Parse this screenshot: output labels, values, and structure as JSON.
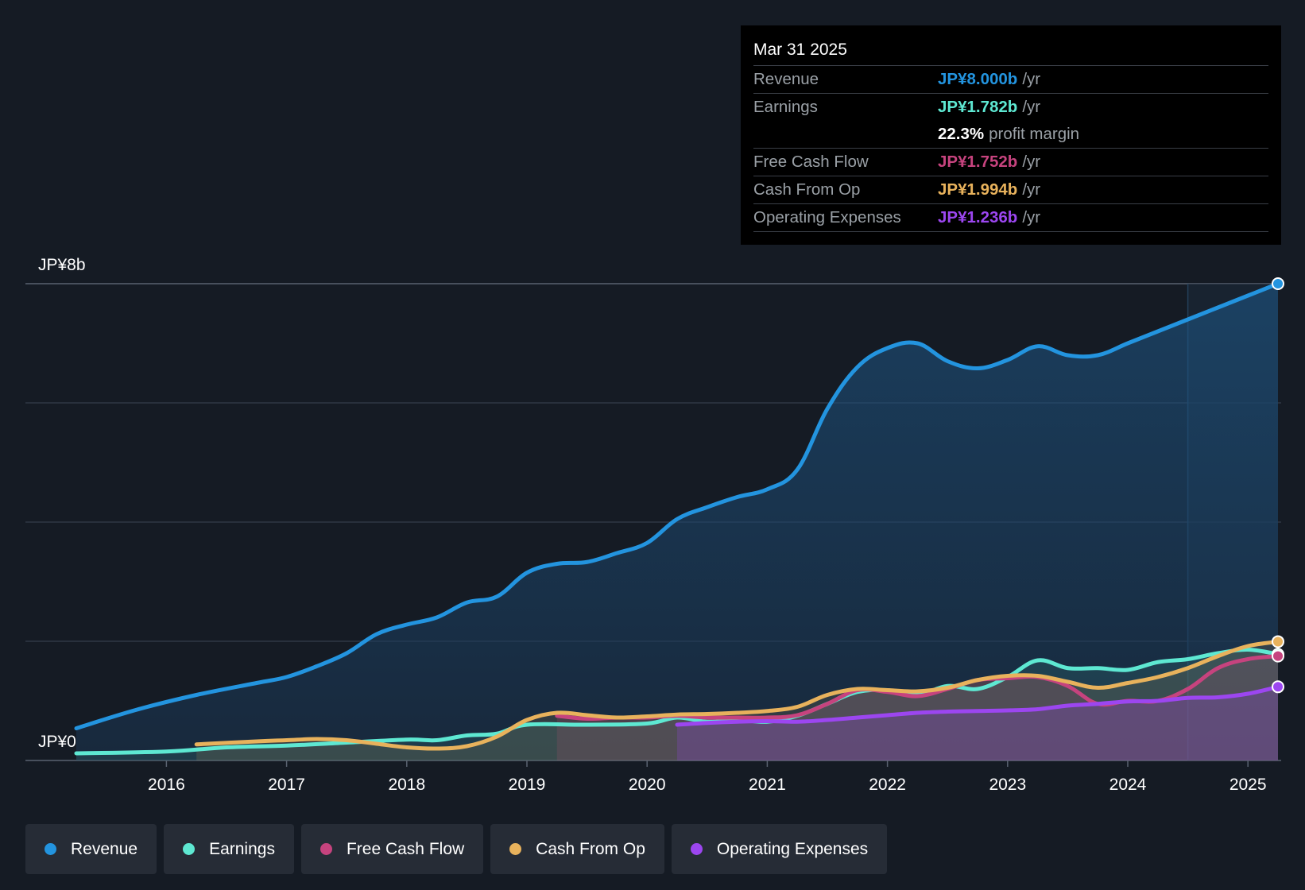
{
  "chart_data": {
    "type": "area",
    "y_axis": {
      "top_label": "JP¥8b",
      "bottom_label": "JP¥0",
      "ylim": [
        0,
        8
      ]
    },
    "x_axis": {
      "ticks": [
        "2016",
        "2017",
        "2018",
        "2019",
        "2020",
        "2021",
        "2022",
        "2023",
        "2024",
        "2025"
      ],
      "xlim": [
        2015.25,
        2025.25
      ]
    },
    "series": [
      {
        "name": "Revenue",
        "color": "#2394df",
        "x": [
          2015.25,
          2015.75,
          2016.25,
          2016.75,
          2017.0,
          2017.25,
          2017.5,
          2017.75,
          2018.0,
          2018.25,
          2018.5,
          2018.75,
          2019.0,
          2019.25,
          2019.5,
          2019.75,
          2020.0,
          2020.25,
          2020.5,
          2020.75,
          2021.0,
          2021.25,
          2021.5,
          2021.75,
          2022.0,
          2022.25,
          2022.5,
          2022.75,
          2023.0,
          2023.25,
          2023.5,
          2023.75,
          2024.0,
          2024.25,
          2024.5,
          2024.75,
          2025.0,
          2025.25
        ],
        "values": [
          0.54,
          0.85,
          1.1,
          1.3,
          1.4,
          1.58,
          1.8,
          2.12,
          2.28,
          2.4,
          2.65,
          2.75,
          3.15,
          3.3,
          3.33,
          3.48,
          3.65,
          4.05,
          4.25,
          4.42,
          4.55,
          4.88,
          5.9,
          6.6,
          6.92,
          7.0,
          6.7,
          6.58,
          6.72,
          6.95,
          6.8,
          6.8,
          7.0,
          7.2,
          7.4,
          7.6,
          7.8,
          8.0
        ]
      },
      {
        "name": "Earnings",
        "color": "#5ee8d2",
        "x": [
          2015.25,
          2016.0,
          2016.5,
          2017.0,
          2017.5,
          2018.0,
          2018.25,
          2018.5,
          2018.75,
          2019.0,
          2019.5,
          2020.0,
          2020.25,
          2020.5,
          2020.75,
          2021.0,
          2021.25,
          2021.5,
          2021.75,
          2022.0,
          2022.25,
          2022.5,
          2022.75,
          2023.0,
          2023.25,
          2023.5,
          2023.75,
          2024.0,
          2024.25,
          2024.5,
          2024.75,
          2025.0,
          2025.25
        ],
        "values": [
          0.12,
          0.15,
          0.22,
          0.25,
          0.3,
          0.35,
          0.34,
          0.42,
          0.45,
          0.6,
          0.6,
          0.62,
          0.72,
          0.65,
          0.68,
          0.65,
          0.75,
          0.95,
          1.15,
          1.18,
          1.1,
          1.25,
          1.2,
          1.4,
          1.68,
          1.55,
          1.55,
          1.52,
          1.65,
          1.7,
          1.8,
          1.86,
          1.782
        ]
      },
      {
        "name": "Free Cash Flow",
        "color": "#c6437e",
        "x": [
          2019.25,
          2019.5,
          2019.75,
          2020.0,
          2020.25,
          2020.5,
          2020.75,
          2021.0,
          2021.25,
          2021.5,
          2021.75,
          2022.0,
          2022.25,
          2022.5,
          2022.75,
          2023.0,
          2023.25,
          2023.5,
          2023.75,
          2024.0,
          2024.25,
          2024.5,
          2024.75,
          2025.0,
          2025.25
        ],
        "values": [
          0.75,
          0.7,
          0.72,
          0.72,
          0.75,
          0.72,
          0.72,
          0.72,
          0.76,
          0.95,
          1.18,
          1.15,
          1.08,
          1.2,
          1.35,
          1.38,
          1.4,
          1.25,
          0.95,
          1.0,
          1.0,
          1.2,
          1.55,
          1.7,
          1.752
        ]
      },
      {
        "name": "Cash From Op",
        "color": "#e8b25c",
        "x": [
          2016.25,
          2016.75,
          2017.0,
          2017.25,
          2017.5,
          2017.75,
          2018.0,
          2018.25,
          2018.5,
          2018.75,
          2019.0,
          2019.25,
          2019.5,
          2019.75,
          2020.0,
          2020.25,
          2020.5,
          2020.75,
          2021.0,
          2021.25,
          2021.5,
          2021.75,
          2022.0,
          2022.25,
          2022.5,
          2022.75,
          2023.0,
          2023.25,
          2023.5,
          2023.75,
          2024.0,
          2024.25,
          2024.5,
          2024.75,
          2025.0,
          2025.25
        ],
        "values": [
          0.27,
          0.32,
          0.34,
          0.36,
          0.34,
          0.28,
          0.22,
          0.2,
          0.24,
          0.4,
          0.68,
          0.8,
          0.76,
          0.72,
          0.74,
          0.77,
          0.78,
          0.8,
          0.83,
          0.9,
          1.1,
          1.2,
          1.18,
          1.16,
          1.22,
          1.35,
          1.42,
          1.42,
          1.32,
          1.22,
          1.3,
          1.4,
          1.55,
          1.75,
          1.92,
          1.994
        ]
      },
      {
        "name": "Operating Expenses",
        "color": "#9c46f0",
        "x": [
          2020.25,
          2020.5,
          2020.75,
          2021.0,
          2021.25,
          2021.5,
          2021.75,
          2022.0,
          2022.25,
          2022.5,
          2022.75,
          2023.0,
          2023.25,
          2023.5,
          2023.75,
          2024.0,
          2024.25,
          2024.5,
          2024.75,
          2025.0,
          2025.25
        ],
        "values": [
          0.6,
          0.63,
          0.65,
          0.66,
          0.65,
          0.68,
          0.72,
          0.76,
          0.8,
          0.82,
          0.83,
          0.84,
          0.86,
          0.92,
          0.95,
          0.99,
          1.0,
          1.05,
          1.06,
          1.12,
          1.236
        ]
      }
    ]
  },
  "tooltip": {
    "date": "Mar 31 2025",
    "rows": [
      {
        "label": "Revenue",
        "value": "JP¥8.000b",
        "unit": "/yr",
        "color": "#2394df"
      },
      {
        "label": "Earnings",
        "value": "JP¥1.782b",
        "unit": "/yr",
        "color": "#5ee8d2"
      },
      {
        "label": "",
        "value": "22.3%",
        "unit": "profit margin",
        "color": "#ffffff"
      },
      {
        "label": "Free Cash Flow",
        "value": "JP¥1.752b",
        "unit": "/yr",
        "color": "#c6437e"
      },
      {
        "label": "Cash From Op",
        "value": "JP¥1.994b",
        "unit": "/yr",
        "color": "#e8b25c"
      },
      {
        "label": "Operating Expenses",
        "value": "JP¥1.236b",
        "unit": "/yr",
        "color": "#9c46f0"
      }
    ]
  },
  "legend": [
    {
      "label": "Revenue",
      "color": "#2394df"
    },
    {
      "label": "Earnings",
      "color": "#5ee8d2"
    },
    {
      "label": "Free Cash Flow",
      "color": "#c6437e"
    },
    {
      "label": "Cash From Op",
      "color": "#e8b25c"
    },
    {
      "label": "Operating Expenses",
      "color": "#9c46f0"
    }
  ]
}
